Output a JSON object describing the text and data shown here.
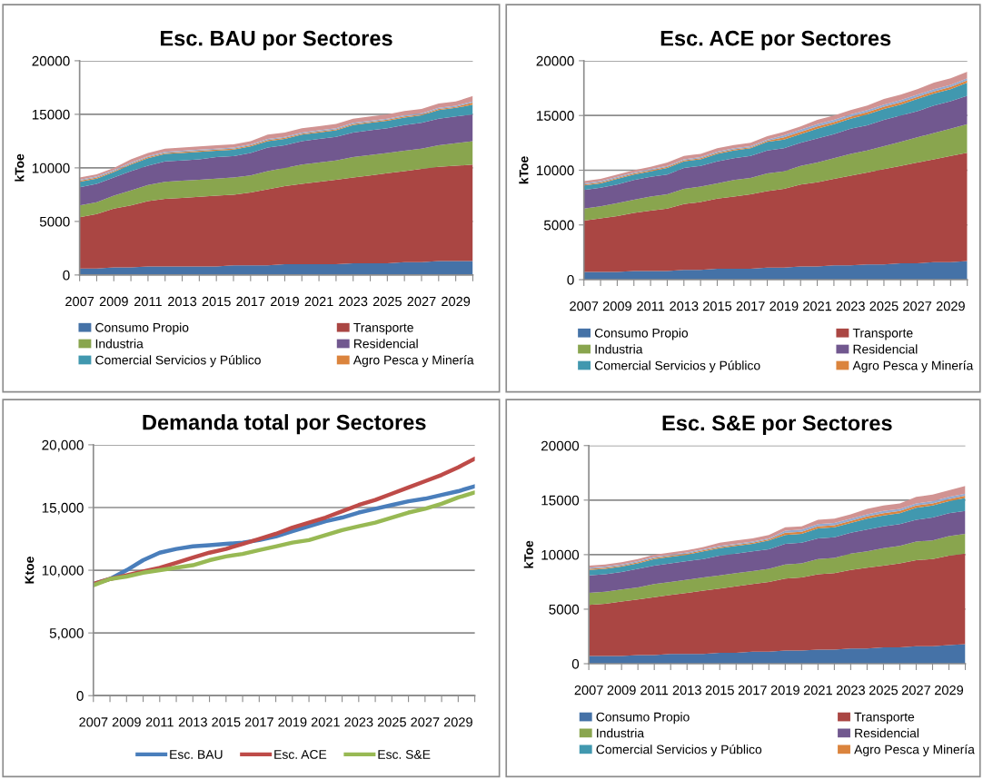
{
  "chart_data": [
    {
      "type": "area",
      "stacked": true,
      "title": "Esc. BAU por Sectores",
      "ylabel": "kToe",
      "categories": [
        "2007",
        null,
        "2009",
        null,
        "2011",
        null,
        "2013",
        null,
        "2015",
        null,
        "2017",
        null,
        "2019",
        null,
        "2021",
        null,
        "2023",
        null,
        "2025",
        null,
        "2027",
        null,
        "2029",
        null
      ],
      "ylim": [
        0,
        20000
      ],
      "yticks": [
        0,
        5000,
        10000,
        15000,
        20000
      ],
      "grid": "y",
      "legend": "bottom",
      "series": [
        {
          "name": "Consumo Propio",
          "color": "#4572a7",
          "values": [
            600,
            600,
            700,
            700,
            800,
            800,
            800,
            800,
            800,
            900,
            900,
            900,
            1000,
            1000,
            1000,
            1000,
            1100,
            1100,
            1100,
            1200,
            1200,
            1300,
            1300,
            1300
          ]
        },
        {
          "name": "Transporte",
          "color": "#aa4643",
          "values": [
            4800,
            5100,
            5500,
            5800,
            6100,
            6300,
            6400,
            6500,
            6600,
            6600,
            6800,
            7100,
            7300,
            7500,
            7700,
            7900,
            8000,
            8200,
            8400,
            8500,
            8700,
            8800,
            8900,
            9000
          ]
        },
        {
          "name": "Industria",
          "color": "#89a54e",
          "values": [
            1100,
            1100,
            1200,
            1400,
            1500,
            1600,
            1600,
            1600,
            1600,
            1600,
            1600,
            1700,
            1700,
            1800,
            1800,
            1800,
            1900,
            1900,
            1900,
            1900,
            1900,
            2000,
            2100,
            2200
          ]
        },
        {
          "name": "Residencial",
          "color": "#71588f",
          "values": [
            1700,
            1700,
            1700,
            1800,
            1800,
            1900,
            1900,
            1900,
            2000,
            2000,
            2100,
            2200,
            2100,
            2200,
            2200,
            2200,
            2300,
            2300,
            2300,
            2400,
            2400,
            2500,
            2500,
            2500
          ]
        },
        {
          "name": "Comercial Servicios y Público",
          "color": "#4198af",
          "values": [
            500,
            500,
            500,
            600,
            700,
            700,
            700,
            700,
            600,
            600,
            600,
            600,
            600,
            600,
            600,
            600,
            700,
            700,
            700,
            700,
            700,
            800,
            800,
            900
          ]
        },
        {
          "name": "Agro Pesca y Minería",
          "color": "#db843d",
          "values": [
            100,
            100,
            100,
            100,
            100,
            100,
            100,
            100,
            100,
            100,
            100,
            100,
            100,
            100,
            100,
            100,
            100,
            100,
            100,
            100,
            100,
            100,
            100,
            200
          ]
        },
        {
          "color": "#93a9cf",
          "values": [
            100,
            100,
            100,
            100,
            100,
            100,
            100,
            100,
            100,
            100,
            100,
            100,
            100,
            100,
            100,
            100,
            100,
            100,
            100,
            100,
            100,
            100,
            100,
            100
          ]
        },
        {
          "color": "#d19392",
          "values": [
            200,
            200,
            200,
            300,
            300,
            300,
            300,
            300,
            300,
            300,
            300,
            400,
            400,
            400,
            400,
            400,
            400,
            400,
            400,
            400,
            400,
            400,
            400,
            500
          ]
        }
      ]
    },
    {
      "type": "area",
      "stacked": true,
      "title": "Esc. ACE por Sectores",
      "ylabel": "kToe",
      "categories": [
        "2007",
        null,
        "2009",
        null,
        "2011",
        null,
        "2013",
        null,
        "2015",
        null,
        "2017",
        null,
        "2019",
        null,
        "2021",
        null,
        "2023",
        null,
        "2025",
        null,
        "2027",
        null,
        "2029",
        null
      ],
      "ylim": [
        0,
        20000
      ],
      "yticks": [
        0,
        5000,
        10000,
        15000,
        20000
      ],
      "grid": "y",
      "legend": "bottom",
      "series": [
        {
          "name": "Consumo Propio",
          "color": "#4572a7",
          "values": [
            700,
            700,
            700,
            800,
            800,
            800,
            900,
            900,
            1000,
            1000,
            1000,
            1100,
            1100,
            1200,
            1200,
            1300,
            1300,
            1400,
            1400,
            1500,
            1500,
            1600,
            1600,
            1700
          ]
        },
        {
          "name": "Transporte",
          "color": "#aa4643",
          "values": [
            4700,
            4900,
            5100,
            5300,
            5500,
            5700,
            6000,
            6200,
            6400,
            6600,
            6800,
            7000,
            7200,
            7500,
            7700,
            7900,
            8200,
            8400,
            8700,
            8900,
            9200,
            9400,
            9700,
            9900
          ]
        },
        {
          "name": "Industria",
          "color": "#89a54e",
          "values": [
            1100,
            1100,
            1200,
            1200,
            1300,
            1300,
            1400,
            1400,
            1400,
            1500,
            1500,
            1600,
            1600,
            1700,
            1800,
            1900,
            2000,
            2000,
            2100,
            2200,
            2300,
            2400,
            2500,
            2600
          ]
        },
        {
          "name": "Residencial",
          "color": "#71588f",
          "values": [
            1700,
            1700,
            1700,
            1800,
            1800,
            1800,
            1900,
            1900,
            2000,
            2000,
            2000,
            2100,
            2100,
            2100,
            2200,
            2200,
            2300,
            2300,
            2400,
            2400,
            2400,
            2500,
            2500,
            2600
          ]
        },
        {
          "name": "Comercial Servicios y Público",
          "color": "#4198af",
          "values": [
            400,
            400,
            500,
            500,
            500,
            600,
            600,
            600,
            700,
            700,
            700,
            800,
            800,
            800,
            900,
            900,
            900,
            1000,
            1000,
            1000,
            1100,
            1100,
            1100,
            1200
          ]
        },
        {
          "name": "Agro Pesca y Minería",
          "color": "#db843d",
          "values": [
            100,
            100,
            100,
            100,
            100,
            100,
            100,
            100,
            100,
            100,
            100,
            100,
            200,
            200,
            200,
            200,
            200,
            200,
            200,
            200,
            200,
            200,
            200,
            200
          ]
        },
        {
          "color": "#93a9cf",
          "values": [
            100,
            100,
            100,
            100,
            100,
            100,
            100,
            100,
            100,
            100,
            100,
            100,
            200,
            200,
            200,
            200,
            200,
            200,
            200,
            200,
            200,
            200,
            200,
            200
          ]
        },
        {
          "color": "#d19392",
          "values": [
            200,
            200,
            200,
            200,
            200,
            300,
            300,
            300,
            300,
            300,
            300,
            300,
            300,
            300,
            400,
            400,
            400,
            400,
            500,
            500,
            500,
            600,
            600,
            600
          ]
        }
      ]
    },
    {
      "type": "line",
      "title": "Demanda total por Sectores",
      "ylabel": "Ktoe",
      "categories": [
        "2007",
        null,
        "2009",
        null,
        "2011",
        null,
        "2013",
        null,
        "2015",
        null,
        "2017",
        null,
        "2019",
        null,
        "2021",
        null,
        "2023",
        null,
        "2025",
        null,
        "2027",
        null,
        "2029",
        null
      ],
      "ylim": [
        0,
        20000
      ],
      "yticks": [
        0,
        {
          "value": 5000,
          "label": "5,000"
        },
        {
          "value": 10000,
          "label": "10,000"
        },
        {
          "value": 15000,
          "label": "15,000"
        },
        {
          "value": 20000,
          "label": "20,000"
        }
      ],
      "grid": "y",
      "legend": "bottom",
      "marker": "none",
      "line_style": "solid",
      "series": [
        {
          "name": "Esc. BAU",
          "color": "#4a7ebb",
          "values": [
            8900,
            9300,
            10000,
            10800,
            11400,
            11700,
            11900,
            12000,
            12100,
            12200,
            12400,
            12700,
            13100,
            13500,
            13900,
            14200,
            14600,
            14900,
            15200,
            15500,
            15700,
            16000,
            16300,
            16700
          ]
        },
        {
          "name": "Esc. ACE",
          "color": "#be4b48",
          "values": [
            8900,
            9300,
            9600,
            9900,
            10200,
            10600,
            11000,
            11400,
            11700,
            12100,
            12500,
            12900,
            13400,
            13800,
            14200,
            14700,
            15200,
            15600,
            16100,
            16600,
            17100,
            17600,
            18200,
            18900
          ]
        },
        {
          "name": "Esc. S&E",
          "color": "#98b954",
          "values": [
            8800,
            9300,
            9500,
            9800,
            10000,
            10200,
            10400,
            10800,
            11100,
            11300,
            11600,
            11900,
            12200,
            12400,
            12800,
            13200,
            13500,
            13800,
            14200,
            14600,
            14900,
            15300,
            15800,
            16200
          ]
        }
      ]
    },
    {
      "type": "area",
      "stacked": true,
      "title": "Esc. S&E por Sectores",
      "ylabel": "kToe",
      "categories": [
        "2007",
        null,
        "2009",
        null,
        "2011",
        null,
        "2013",
        null,
        "2015",
        null,
        "2017",
        null,
        "2019",
        null,
        "2021",
        null,
        "2023",
        null,
        "2025",
        null,
        "2027",
        null,
        "2029",
        null
      ],
      "ylim": [
        0,
        20000
      ],
      "yticks": [
        0,
        5000,
        10000,
        15000,
        20000
      ],
      "grid": "y",
      "legend": "bottom",
      "series": [
        {
          "name": "Consumo Propio",
          "color": "#4572a7",
          "values": [
            700,
            700,
            700,
            800,
            800,
            900,
            900,
            900,
            1000,
            1000,
            1100,
            1100,
            1200,
            1200,
            1300,
            1300,
            1400,
            1400,
            1500,
            1500,
            1600,
            1600,
            1700,
            1800
          ]
        },
        {
          "name": "Transporte",
          "color": "#aa4643",
          "values": [
            4700,
            4800,
            5000,
            5100,
            5300,
            5400,
            5600,
            5800,
            5900,
            6100,
            6200,
            6400,
            6600,
            6700,
            6900,
            7000,
            7200,
            7400,
            7500,
            7700,
            7900,
            8000,
            8200,
            8300
          ]
        },
        {
          "name": "Industria",
          "color": "#89a54e",
          "values": [
            1100,
            1100,
            1100,
            1100,
            1200,
            1200,
            1200,
            1200,
            1200,
            1200,
            1200,
            1200,
            1300,
            1300,
            1400,
            1400,
            1500,
            1500,
            1600,
            1600,
            1700,
            1700,
            1800,
            1800
          ]
        },
        {
          "name": "Residencial",
          "color": "#71588f",
          "values": [
            1600,
            1600,
            1600,
            1700,
            1700,
            1700,
            1700,
            1700,
            1800,
            1800,
            1800,
            1800,
            1900,
            1900,
            1900,
            1900,
            1900,
            2000,
            2000,
            2000,
            2000,
            2100,
            2100,
            2100
          ]
        },
        {
          "name": "Comercial Servicios y Público",
          "color": "#4198af",
          "values": [
            500,
            500,
            500,
            500,
            600,
            600,
            600,
            700,
            700,
            700,
            700,
            800,
            800,
            800,
            900,
            900,
            900,
            1000,
            1000,
            1000,
            1100,
            1100,
            1100,
            1200
          ]
        },
        {
          "name": "Agro Pesca y Minería",
          "color": "#db843d",
          "values": [
            100,
            100,
            100,
            100,
            100,
            100,
            100,
            100,
            100,
            100,
            100,
            100,
            200,
            200,
            200,
            200,
            200,
            200,
            200,
            200,
            200,
            200,
            200,
            200
          ]
        },
        {
          "color": "#93a9cf",
          "values": [
            100,
            100,
            100,
            100,
            100,
            100,
            100,
            100,
            100,
            100,
            100,
            100,
            200,
            200,
            200,
            200,
            200,
            200,
            200,
            200,
            200,
            200,
            200,
            200
          ]
        },
        {
          "color": "#d19392",
          "values": [
            200,
            200,
            200,
            200,
            200,
            200,
            200,
            200,
            300,
            300,
            300,
            300,
            300,
            300,
            400,
            400,
            400,
            500,
            500,
            500,
            600,
            600,
            600,
            700
          ]
        }
      ]
    }
  ]
}
